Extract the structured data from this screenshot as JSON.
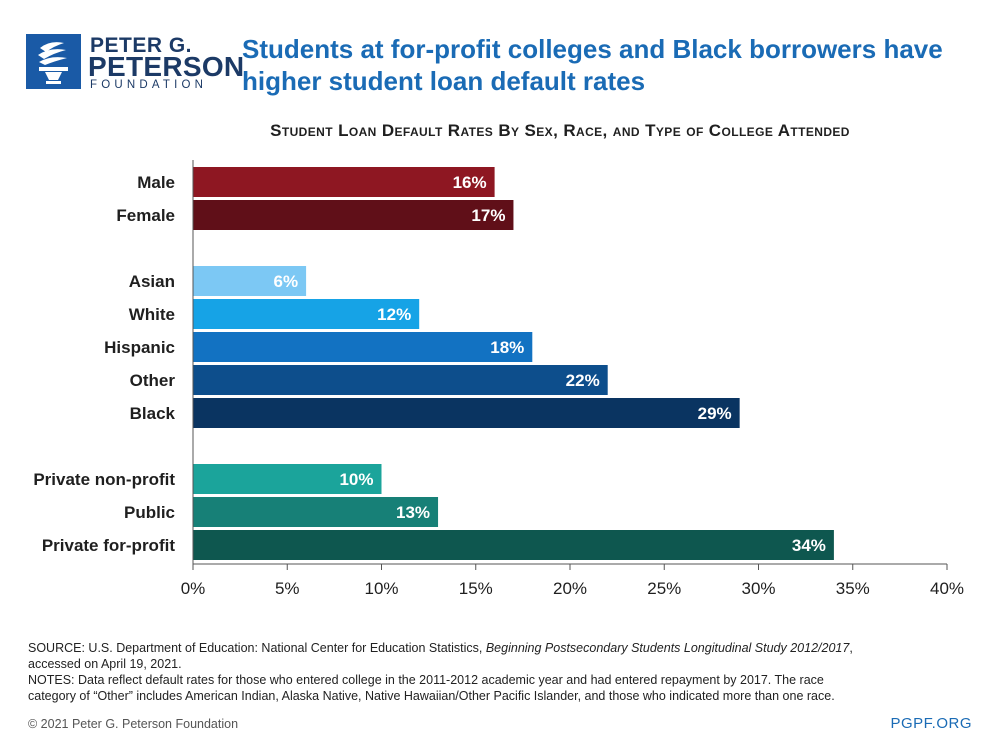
{
  "brand": {
    "line1": "PETER G.",
    "line2": "PETERSON",
    "line3": "FOUNDATION",
    "color": "#1a5aa6"
  },
  "headline": "Students at for-profit colleges and Black borrowers have higher student loan default rates",
  "chart_data": {
    "type": "bar",
    "orientation": "horizontal",
    "title": "Student Loan Default Rates By Sex, Race, and Type of College Attended",
    "xlim": [
      0,
      40
    ],
    "x_ticks": [
      "0%",
      "5%",
      "10%",
      "15%",
      "20%",
      "25%",
      "30%",
      "35%",
      "40%"
    ],
    "x_tick_values": [
      0,
      5,
      10,
      15,
      20,
      25,
      30,
      35,
      40
    ],
    "grid": false,
    "groups": [
      {
        "bars": [
          {
            "category": "Male",
            "value": 16,
            "label": "16%",
            "color": "#8e1722"
          },
          {
            "category": "Female",
            "value": 17,
            "label": "17%",
            "color": "#600f18"
          }
        ]
      },
      {
        "bars": [
          {
            "category": "Asian",
            "value": 6,
            "label": "6%",
            "color": "#7cc8f4"
          },
          {
            "category": "White",
            "value": 12,
            "label": "12%",
            "color": "#16a3e6"
          },
          {
            "category": "Hispanic",
            "value": 18,
            "label": "18%",
            "color": "#1272c2"
          },
          {
            "category": "Other",
            "value": 22,
            "label": "22%",
            "color": "#0d4e8c"
          },
          {
            "category": "Black",
            "value": 29,
            "label": "29%",
            "color": "#0a3461"
          }
        ]
      },
      {
        "bars": [
          {
            "category": "Private non-profit",
            "value": 10,
            "label": "10%",
            "color": "#1ba49b"
          },
          {
            "category": "Public",
            "value": 13,
            "label": "13%",
            "color": "#178077"
          },
          {
            "category": "Private for-profit",
            "value": 34,
            "label": "34%",
            "color": "#0e574f"
          }
        ]
      }
    ]
  },
  "footer": {
    "source_prefix": "SOURCE: U.S. Department of Education: National Center for Education Statistics, ",
    "source_title": "Beginning Postsecondary Students Longitudinal Study 2012/2017",
    "source_suffix": ",",
    "source_line2": "accessed on April 19, 2021.",
    "notes_line1": "NOTES: Data reflect default rates for those who entered college in the 2011-2012 academic year and had entered repayment by 2017. The race",
    "notes_line2": "category of “Other” includes American Indian, Alaska Native, Native Hawaiian/Other Pacific Islander, and those who indicated more than one race.",
    "copyright": "© 2021 Peter G. Peterson Foundation",
    "site": "PGPF.ORG"
  }
}
